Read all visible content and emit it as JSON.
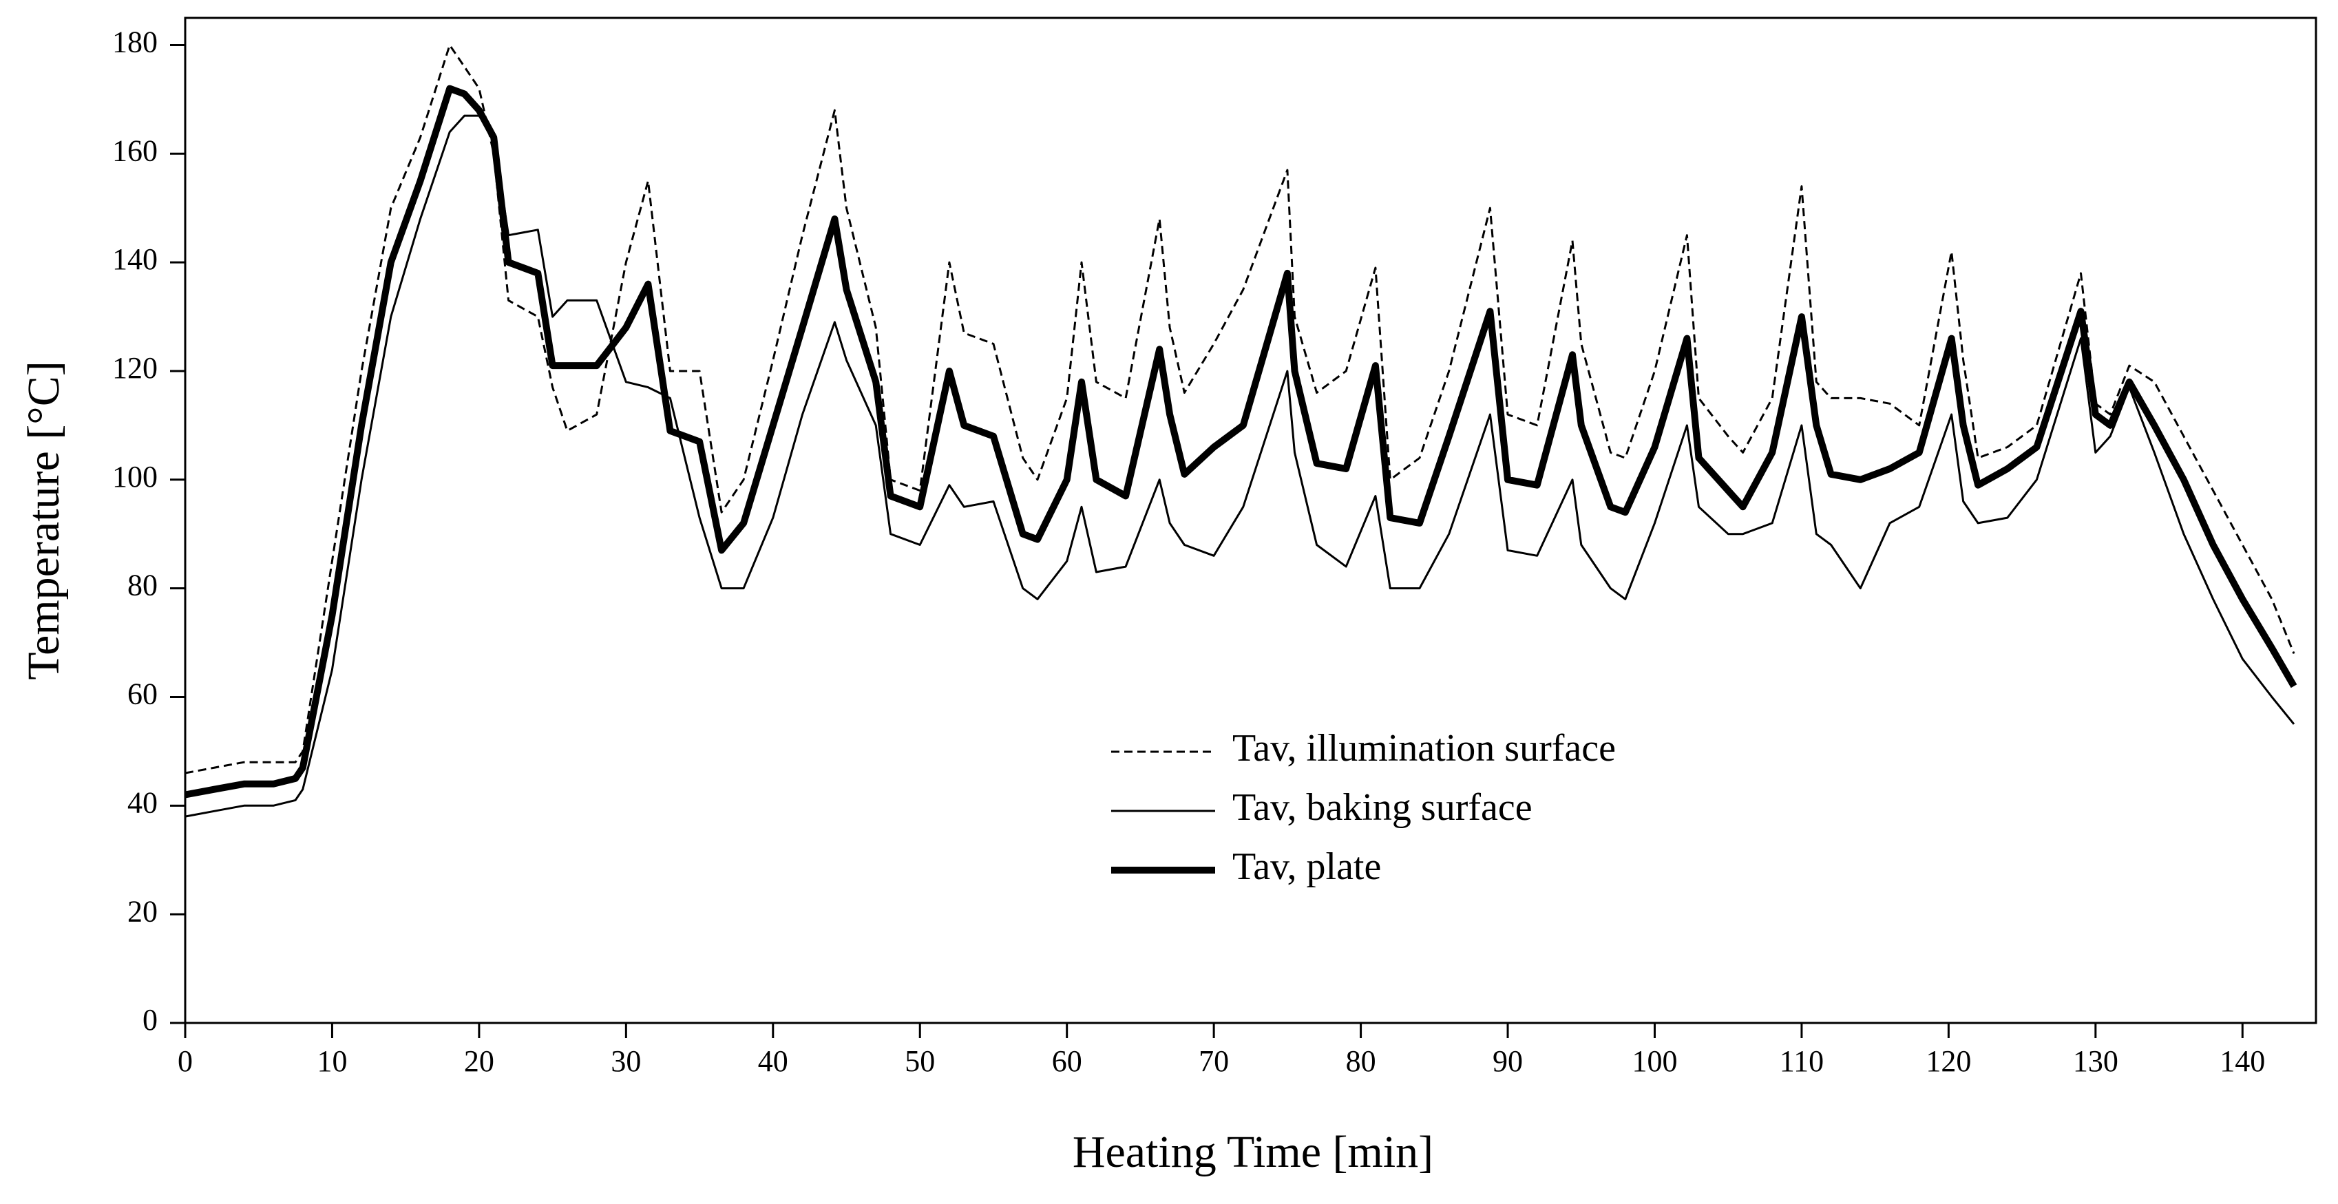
{
  "chart_data": {
    "type": "line",
    "x_label": "Heating Time [min]",
    "y_label": "Temperature [°C]",
    "x": [
      0,
      2,
      4,
      6,
      7.5,
      8,
      10,
      12,
      14,
      16,
      18,
      19,
      20,
      21,
      22,
      24,
      25,
      26,
      28,
      30,
      31.5,
      33,
      35,
      36.5,
      38,
      40,
      42,
      44.2,
      45,
      47,
      48,
      50,
      52,
      53,
      55,
      57,
      58,
      60,
      61,
      62,
      64,
      66.3,
      67,
      68,
      70,
      72,
      75,
      75.5,
      77,
      79,
      81,
      82,
      84,
      86,
      88.8,
      90,
      92,
      94.4,
      95,
      97,
      98,
      100,
      102.2,
      103,
      105,
      106,
      108,
      110,
      111,
      112,
      114,
      116,
      118,
      120.2,
      121,
      122,
      124,
      126,
      129,
      130,
      131,
      132.3,
      134,
      136,
      138,
      140,
      142,
      143.5
    ],
    "series": [
      {
        "name": "Tav, illumination surface",
        "color": "#000000",
        "style": "dashed",
        "values": [
          46,
          47,
          48,
          48,
          48,
          50,
          85,
          120,
          150,
          163,
          180,
          176,
          172,
          160,
          133,
          130,
          117,
          109,
          112,
          140,
          155,
          120,
          120,
          94,
          100,
          122,
          145,
          168,
          150,
          128,
          100,
          98,
          140,
          127,
          125,
          104,
          100,
          115,
          140,
          118,
          115,
          148,
          128,
          116,
          125,
          135,
          157,
          130,
          116,
          120,
          139,
          100,
          104,
          120,
          150,
          112,
          110,
          144,
          125,
          105,
          104,
          120,
          145,
          115,
          108,
          105,
          115,
          154,
          118,
          115,
          115,
          114,
          110,
          142,
          122,
          104,
          106,
          110,
          138,
          114,
          112,
          121,
          118,
          108,
          98,
          88,
          78,
          68
        ]
      },
      {
        "name": "Tav, baking surface",
        "color": "#000000",
        "style": "thin",
        "values": [
          38,
          39,
          40,
          40,
          41,
          43,
          65,
          100,
          130,
          148,
          164,
          167,
          167,
          163,
          145,
          146,
          130,
          133,
          133,
          118,
          117,
          115,
          93,
          80,
          80,
          93,
          112,
          129,
          122,
          110,
          90,
          88,
          99,
          95,
          96,
          80,
          78,
          85,
          95,
          83,
          84,
          100,
          92,
          88,
          86,
          95,
          120,
          105,
          88,
          84,
          97,
          80,
          80,
          90,
          112,
          87,
          86,
          100,
          88,
          80,
          78,
          92,
          110,
          95,
          90,
          90,
          92,
          110,
          90,
          88,
          80,
          92,
          95,
          112,
          96,
          92,
          93,
          100,
          126,
          105,
          108,
          117,
          105,
          90,
          78,
          67,
          60,
          55
        ]
      },
      {
        "name": "Tav, plate",
        "color": "#000000",
        "style": "thick",
        "values": [
          42,
          43,
          44,
          44,
          45,
          47,
          75,
          110,
          140,
          155,
          172,
          171,
          168,
          163,
          140,
          138,
          121,
          121,
          121,
          128,
          136,
          109,
          107,
          87,
          92,
          110,
          128,
          148,
          135,
          118,
          97,
          95,
          120,
          110,
          108,
          90,
          89,
          100,
          118,
          100,
          97,
          124,
          112,
          101,
          106,
          110,
          138,
          120,
          103,
          102,
          121,
          93,
          92,
          108,
          131,
          100,
          99,
          123,
          110,
          95,
          94,
          106,
          126,
          104,
          98,
          95,
          105,
          130,
          110,
          101,
          100,
          102,
          105,
          126,
          110,
          99,
          102,
          106,
          131,
          112,
          110,
          118,
          110,
          100,
          88,
          78,
          69,
          62
        ]
      }
    ],
    "xlim": [
      0,
      145
    ],
    "xticks": [
      0,
      10,
      20,
      30,
      40,
      50,
      60,
      70,
      80,
      90,
      100,
      110,
      120,
      130,
      140
    ],
    "ylim": [
      0,
      185
    ],
    "yticks": [
      0,
      20,
      40,
      60,
      80,
      100,
      120,
      140,
      160,
      180
    ]
  }
}
